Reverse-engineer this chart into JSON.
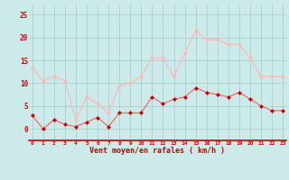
{
  "x": [
    0,
    1,
    2,
    3,
    4,
    5,
    6,
    7,
    8,
    9,
    10,
    11,
    12,
    13,
    14,
    15,
    16,
    17,
    18,
    19,
    20,
    21,
    22,
    23
  ],
  "wind_avg": [
    3,
    0,
    2,
    1,
    0.5,
    1.5,
    2.5,
    0.5,
    3.5,
    3.5,
    3.5,
    7,
    5.5,
    6.5,
    7,
    9,
    8,
    7.5,
    7,
    8,
    6.5,
    5,
    4,
    4
  ],
  "wind_gust": [
    13.5,
    10.5,
    11.5,
    10.5,
    2,
    7,
    5.5,
    3.5,
    9.5,
    10,
    11.5,
    15.5,
    15.5,
    11.5,
    16.5,
    21.5,
    19.5,
    19.5,
    18.5,
    18.5,
    15.5,
    11.5,
    11.5,
    11.5
  ],
  "avg_color": "#e87070",
  "gust_color": "#ffb8b8",
  "marker_avg_color": "#cc0000",
  "marker_gust_color": "#ffb8b8",
  "bg_color": "#cceaea",
  "grid_color": "#aacece",
  "axis_label_color": "#cc0000",
  "tick_color": "#cc0000",
  "xlabel": "Vent moyen/en rafales ( km/h )",
  "ylim": [
    -2.5,
    27
  ],
  "yticks": [
    0,
    5,
    10,
    15,
    20,
    25
  ],
  "xlim": [
    -0.3,
    23.3
  ],
  "bottom_line_y": -2.5
}
